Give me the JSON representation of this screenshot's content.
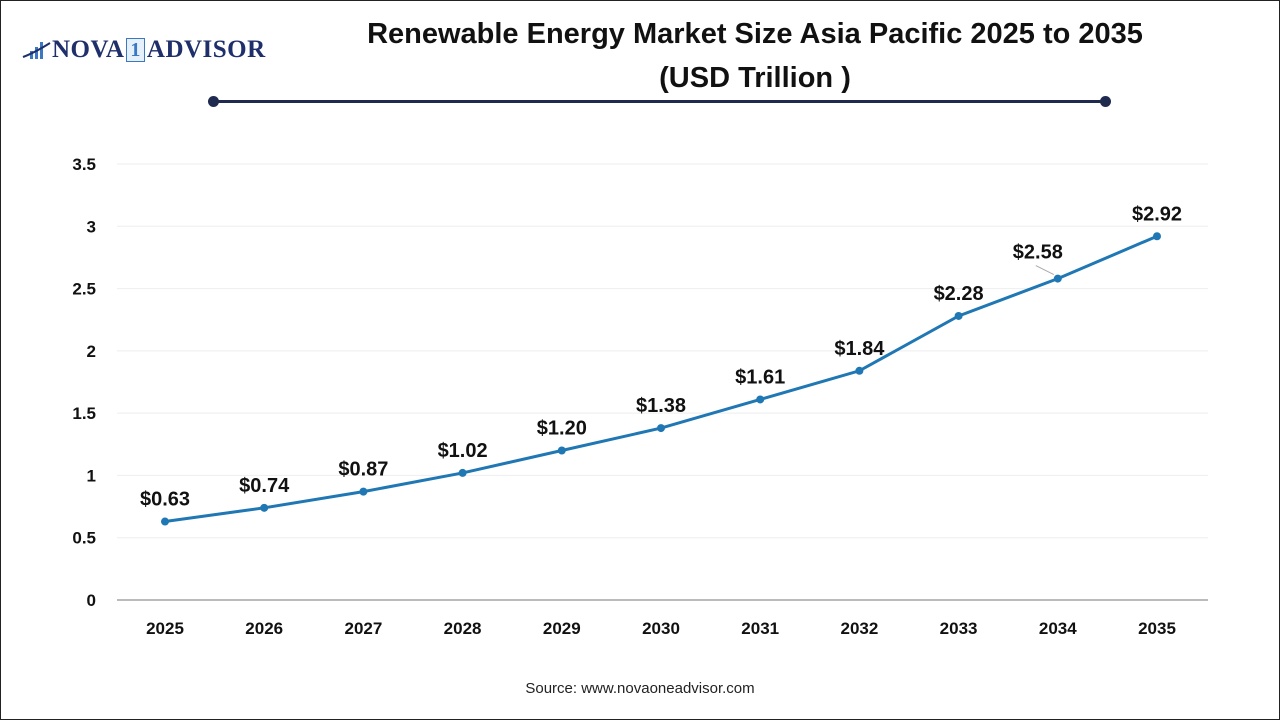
{
  "logo": {
    "text_left": "NOVA",
    "text_mid": "1",
    "text_right": "ADVISOR"
  },
  "title_line1": "Renewable Energy Market Size Asia Pacific 2025 to 2035",
  "title_line2": "(USD Trillion )",
  "source": "Source: www.novaoneadvisor.com",
  "chart_data": {
    "type": "line",
    "title": "Renewable Energy Market Size Asia Pacific 2025 to 2035 (USD Trillion )",
    "categories": [
      "2025",
      "2026",
      "2027",
      "2028",
      "2029",
      "2030",
      "2031",
      "2032",
      "2033",
      "2034",
      "2035"
    ],
    "values": [
      0.63,
      0.74,
      0.87,
      1.02,
      1.2,
      1.38,
      1.61,
      1.84,
      2.28,
      2.58,
      2.92
    ],
    "data_labels": [
      "$0.63",
      "$0.74",
      "$0.87",
      "$1.02",
      "$1.20",
      "$1.38",
      "$1.61",
      "$1.84",
      "$2.28",
      "$2.58",
      "$2.92"
    ],
    "yticks": [
      "0",
      "0.5",
      "1",
      "1.5",
      "2",
      "2.5",
      "3",
      "3.5"
    ],
    "ylim": [
      0,
      3.5
    ],
    "grid": true,
    "line_color": "#1f77b4"
  }
}
